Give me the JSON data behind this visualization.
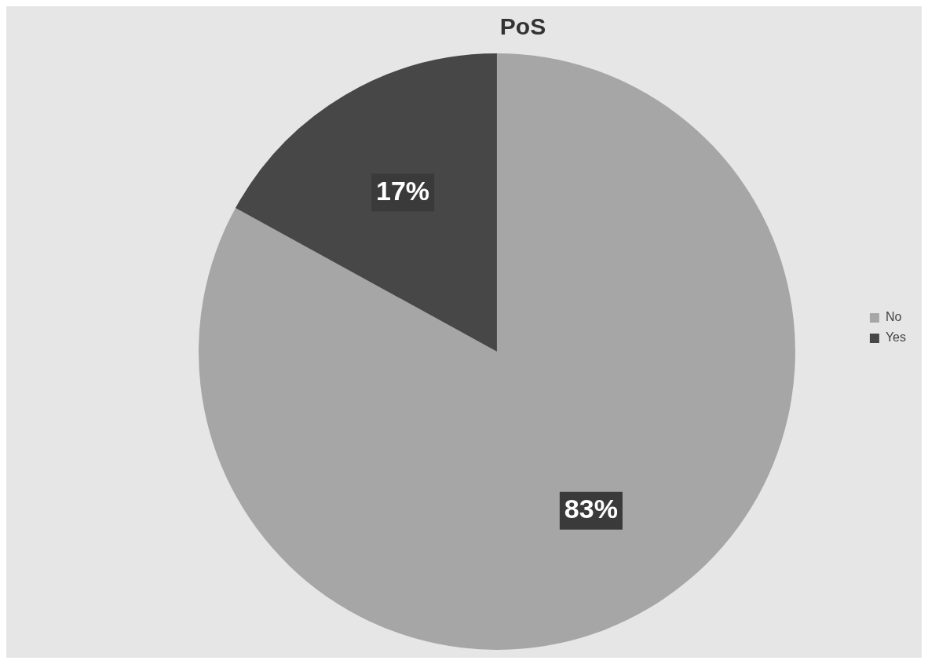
{
  "chart_data": {
    "type": "pie",
    "title": "PoS",
    "categories": [
      "No",
      "Yes"
    ],
    "values": [
      83,
      17
    ],
    "colors": [
      "#a6a6a6",
      "#474747"
    ],
    "value_labels": [
      "83%",
      "17%"
    ],
    "legend": "right"
  }
}
